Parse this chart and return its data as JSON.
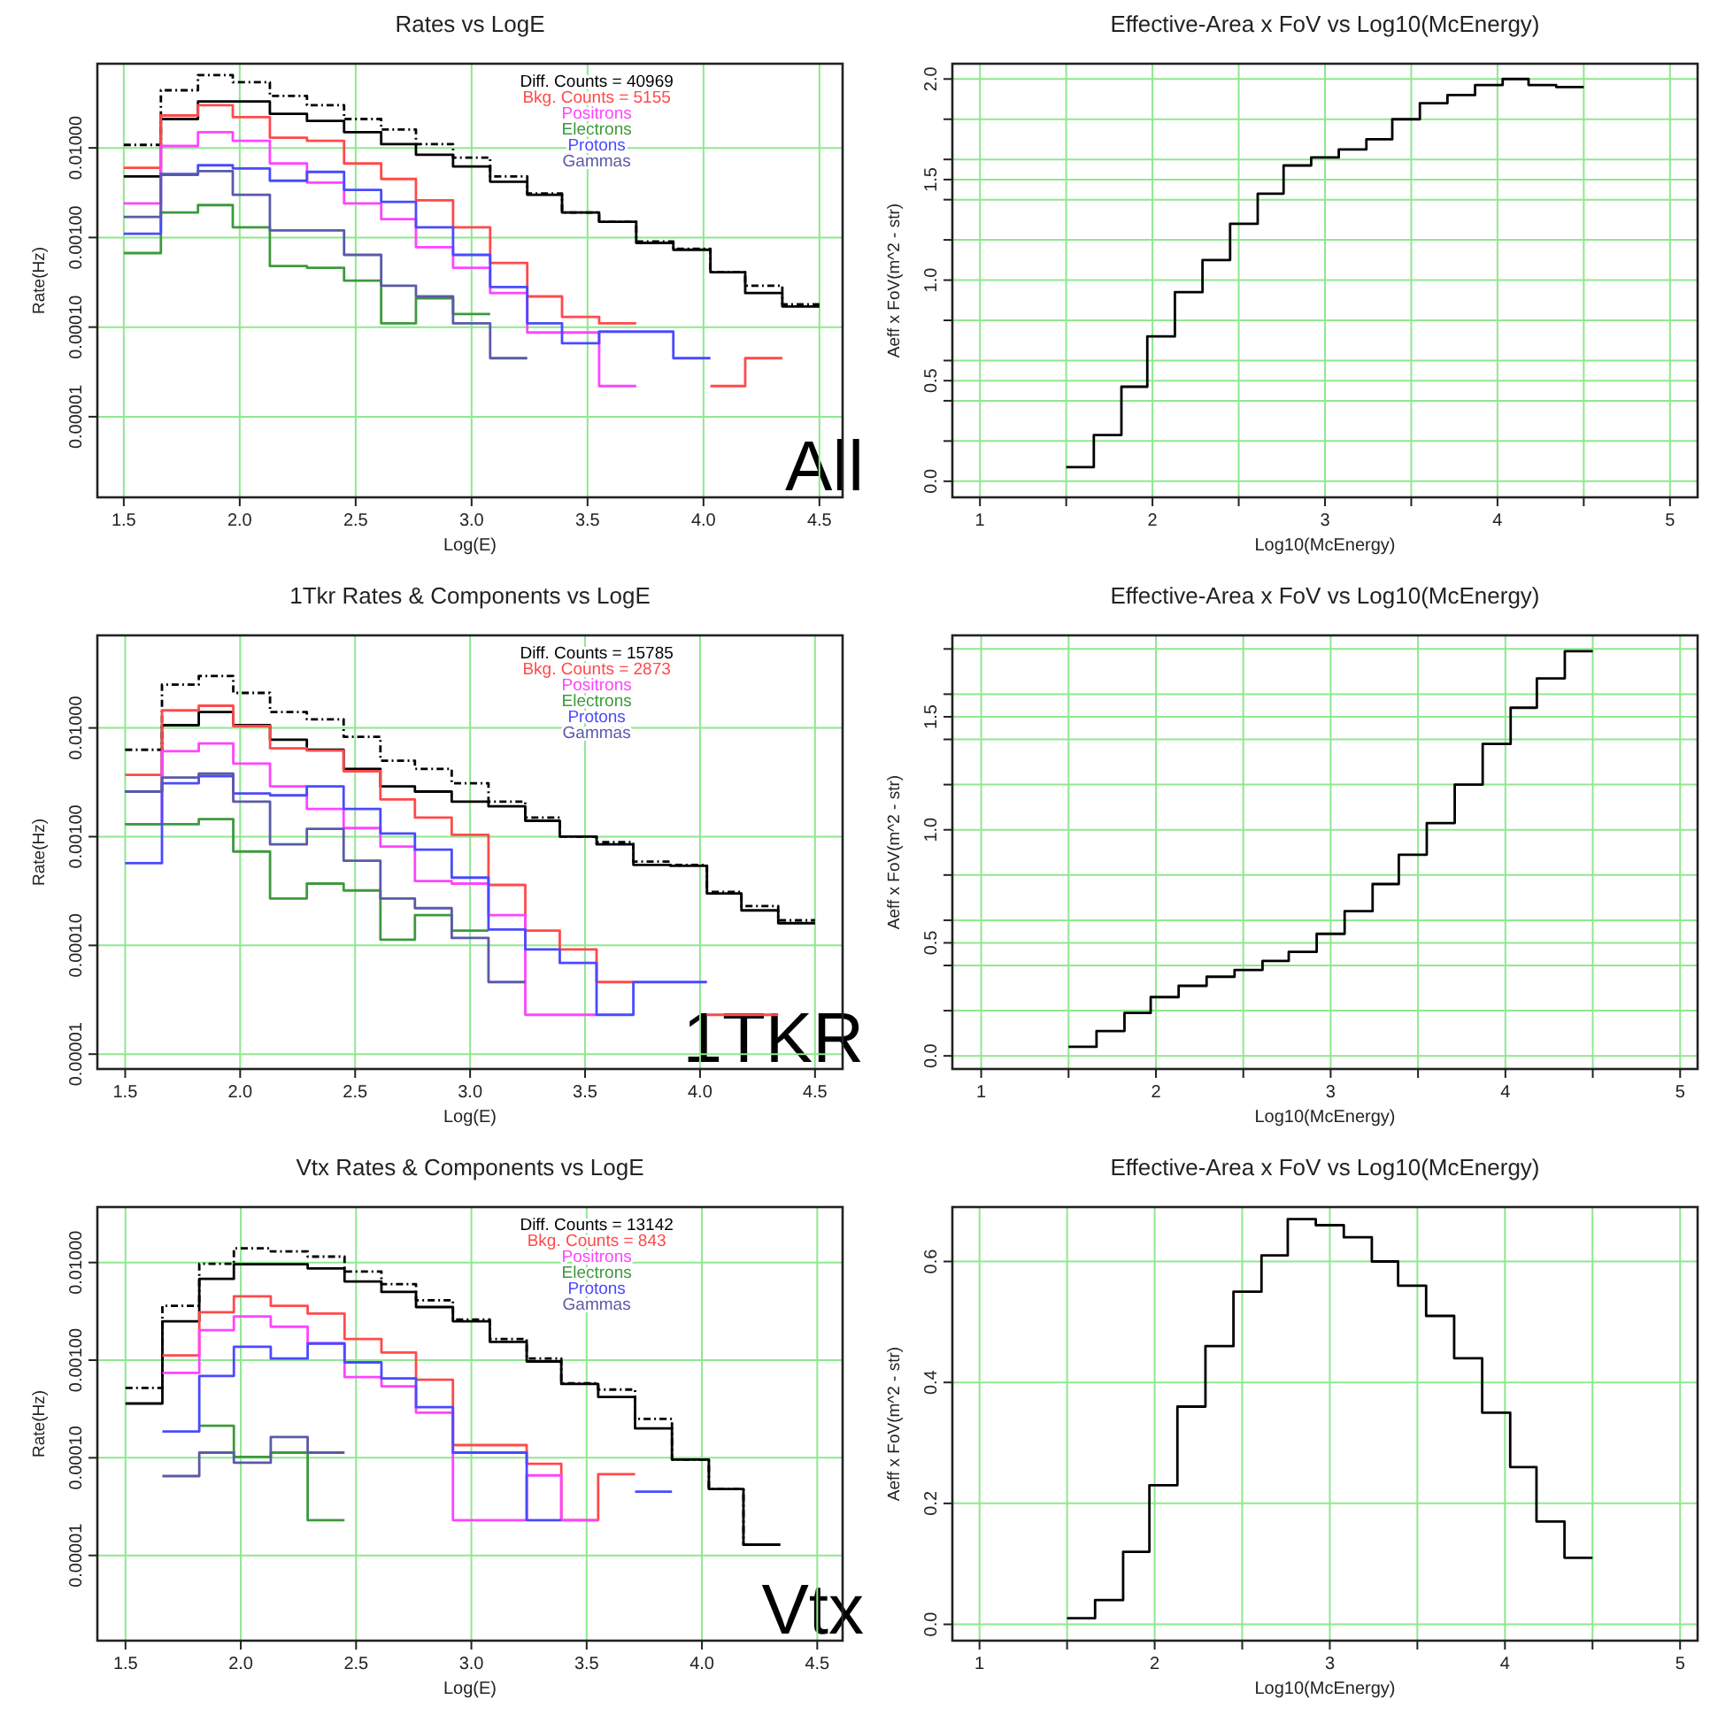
{
  "chart_data": [
    {
      "type": "step",
      "title": "Rates vs LogE",
      "xlabel": "Log(E)",
      "ylabel": "Rate(Hz)",
      "log": "y",
      "grid": true,
      "legend": "top right",
      "xlim": [
        1.386,
        4.6
      ],
      "ylim": [
        1.26e-06,
        0.087
      ],
      "xticks": [
        1.5,
        {
          "value": 2,
          "label": "2.0"
        },
        2.5,
        {
          "value": 3,
          "label": "3.0"
        },
        3.5,
        {
          "value": 4,
          "label": "4.0"
        },
        4.5
      ],
      "yticks": [
        {
          "value": 1e-05,
          "label": "0.00001"
        },
        {
          "value": 0.0001,
          "label": "0.00010"
        },
        {
          "value": 0.001,
          "label": "0.00100"
        },
        {
          "value": 0.01,
          "label": "0.01000"
        }
      ],
      "x": [
        1.5,
        1.66,
        1.82,
        1.97,
        2.13,
        2.29,
        2.45,
        2.61,
        2.76,
        2.92,
        3.08,
        3.24,
        3.39,
        3.55,
        3.71,
        3.87,
        4.03,
        4.18,
        4.34,
        4.5
      ],
      "annotations": [
        "All"
      ],
      "series": [
        {
          "color": "#000000",
          "line_style": "dashed",
          "values": [
            0.0108,
            0.044,
            0.065,
            0.054,
            0.038,
            0.03,
            0.021,
            0.016,
            0.011,
            0.0078,
            0.0048,
            0.0031,
            0.0019,
            0.0015,
            0.0009,
            0.00075,
            0.00041,
            0.00029,
            0.00018,
            0.00018
          ]
        },
        {
          "name": "Diff. Counts = 40969",
          "color": "#000000",
          "values": [
            0.0048,
            0.021,
            0.033,
            0.033,
            0.024,
            0.02,
            0.015,
            0.011,
            0.0084,
            0.0062,
            0.0042,
            0.003,
            0.0019,
            0.0015,
            0.00087,
            0.00073,
            0.00041,
            0.00024,
            0.00017,
            0.00017
          ]
        },
        {
          "name": "Bkg. Counts = 5155",
          "color": "#ff4a4a",
          "values": [
            0.006,
            0.023,
            0.03,
            0.022,
            0.013,
            0.012,
            0.0067,
            0.0045,
            0.0026,
            0.0013,
            0.00052,
            0.00022,
            0.00013,
            0.00011,
            0.00011,
            null,
            2.2e-05,
            4.5e-05,
            4.5e-05,
            null
          ]
        },
        {
          "name": "Positrons",
          "color": "#ff44ff",
          "values": [
            0.0024,
            0.0105,
            0.015,
            0.012,
            0.0067,
            0.0041,
            0.0024,
            0.0016,
            0.00078,
            0.00046,
            0.00024,
            8.7e-05,
            8.7e-05,
            2.2e-05,
            2.2e-05,
            null,
            null,
            null,
            null,
            null
          ]
        },
        {
          "name": "Electrons",
          "color": "#3d9a3d",
          "values": [
            0.00067,
            0.0019,
            0.0023,
            0.0013,
            0.00048,
            0.00046,
            0.00033,
            0.00011,
            0.00021,
            0.00014,
            0.00014,
            null,
            null,
            null,
            null,
            null,
            null,
            null,
            null,
            null
          ]
        },
        {
          "name": "Protons",
          "color": "#4a4aff",
          "values": [
            0.0011,
            0.0051,
            0.0064,
            0.0059,
            0.0043,
            0.0054,
            0.0034,
            0.0025,
            0.0013,
            0.00064,
            0.00028,
            0.00011,
            6.6e-05,
            8.9e-05,
            8.9e-05,
            4.5e-05,
            4.5e-05,
            null,
            null,
            null
          ]
        },
        {
          "name": "Gammas",
          "color": "#5a5aa8",
          "values": [
            0.0017,
            0.005,
            0.0055,
            0.003,
            0.0012,
            0.0012,
            0.00064,
            0.00029,
            0.00022,
            0.00011,
            4.5e-05,
            4.5e-05,
            null,
            null,
            null,
            null,
            null,
            null,
            null,
            null
          ]
        }
      ]
    },
    {
      "type": "step",
      "title": "Effective-Area x FoV vs Log10(McEnergy)",
      "xlabel": "Log10(McEnergy)",
      "ylabel": "Aeff x FoV(m^2 - str)",
      "grid": true,
      "xlim": [
        0.84,
        5.16
      ],
      "ylim": [
        -0.08,
        2.076
      ],
      "xticks": [
        1,
        {
          "value": 1.5,
          "label": null
        },
        2,
        {
          "value": 2.5,
          "label": null
        },
        3,
        {
          "value": 3.5,
          "label": null
        },
        4,
        {
          "value": 4.5,
          "label": null
        },
        5
      ],
      "yticks": [
        {
          "value": 0,
          "label": "0.0"
        },
        {
          "value": 0.2,
          "label": null
        },
        {
          "value": 0.4,
          "label": null
        },
        {
          "value": 0.5,
          "label": "0.5"
        },
        {
          "value": 0.6,
          "label": null
        },
        {
          "value": 0.8,
          "label": null
        },
        {
          "value": 1,
          "label": "1.0"
        },
        {
          "value": 1.2,
          "label": null
        },
        {
          "value": 1.4,
          "label": null
        },
        {
          "value": 1.5,
          "label": "1.5"
        },
        {
          "value": 1.6,
          "label": null
        },
        {
          "value": 1.8,
          "label": null
        },
        {
          "value": 2,
          "label": "2.0"
        }
      ],
      "x": [
        1.5,
        1.66,
        1.82,
        1.97,
        2.13,
        2.29,
        2.45,
        2.61,
        2.76,
        2.92,
        3.08,
        3.24,
        3.39,
        3.55,
        3.71,
        3.87,
        4.03,
        4.18,
        4.34,
        4.5
      ],
      "series": [
        {
          "color": "#000000",
          "values": [
            0.07,
            0.23,
            0.47,
            0.72,
            0.94,
            1.1,
            1.28,
            1.43,
            1.57,
            1.61,
            1.65,
            1.7,
            1.8,
            1.88,
            1.92,
            1.97,
            2.0,
            1.97,
            1.96,
            1.96
          ]
        }
      ]
    },
    {
      "type": "step",
      "title": "1Tkr Rates & Components vs LogE",
      "xlabel": "Log(E)",
      "ylabel": "Rate(Hz)",
      "log": "y",
      "grid": true,
      "legend": "top right",
      "xlim": [
        1.379,
        4.62
      ],
      "ylim": [
        7.3e-06,
        0.071
      ],
      "xticks": [
        1.5,
        {
          "value": 2,
          "label": "2.0"
        },
        2.5,
        {
          "value": 3,
          "label": "3.0"
        },
        3.5,
        {
          "value": 4,
          "label": "4.0"
        },
        4.5
      ],
      "yticks": [
        {
          "value": 1e-05,
          "label": "0.00001"
        },
        {
          "value": 0.0001,
          "label": "0.00010"
        },
        {
          "value": 0.001,
          "label": "0.00100"
        },
        {
          "value": 0.01,
          "label": "0.01000"
        }
      ],
      "x": [
        1.5,
        1.66,
        1.82,
        1.97,
        2.13,
        2.29,
        2.45,
        2.61,
        2.76,
        2.92,
        3.08,
        3.24,
        3.39,
        3.55,
        3.71,
        3.87,
        4.03,
        4.18,
        4.34,
        4.5
      ],
      "annotations": [
        "1TKR"
      ],
      "series": [
        {
          "color": "#000000",
          "line_style": "dashed",
          "values": [
            0.0063,
            0.025,
            0.03,
            0.021,
            0.014,
            0.012,
            0.0083,
            0.005,
            0.0042,
            0.0031,
            0.0021,
            0.0015,
            0.001,
            0.00089,
            0.00059,
            0.00055,
            0.00031,
            0.00023,
            0.00017,
            0.00017
          ]
        },
        {
          "name": "Diff. Counts = 15785",
          "color": "#000000",
          "values": [
            0.0026,
            0.0106,
            0.014,
            0.0106,
            0.0078,
            0.0063,
            0.0042,
            0.0029,
            0.0026,
            0.0021,
            0.0019,
            0.0014,
            0.001,
            0.00085,
            0.00055,
            0.00054,
            0.0003,
            0.00021,
            0.00016,
            0.00016
          ]
        },
        {
          "name": "Bkg. Counts = 2873",
          "color": "#ff4a4a",
          "values": [
            0.0037,
            0.0145,
            0.016,
            0.0104,
            0.0065,
            0.0062,
            0.004,
            0.0022,
            0.0015,
            0.00104,
            0.00036,
            0.000137,
            9.2e-05,
            4.6e-05,
            4.6e-05,
            null,
            2.3e-05,
            2.3e-05,
            2.3e-05,
            null
          ]
        },
        {
          "name": "Positrons",
          "color": "#ff44ff",
          "values": [
            0.0013,
            0.0061,
            0.0072,
            0.0047,
            0.0029,
            0.0018,
            0.0012,
            0.00081,
            0.00039,
            0.00037,
            0.00019,
            2.3e-05,
            2.3e-05,
            2.3e-05,
            null,
            null,
            null,
            null,
            null,
            null
          ]
        },
        {
          "name": "Electrons",
          "color": "#3d9a3d",
          "values": [
            0.0013,
            0.0013,
            0.00145,
            0.00073,
            0.00027,
            0.00037,
            0.00032,
            0.000113,
            0.00019,
            0.000137,
            0.000137,
            null,
            null,
            null,
            null,
            null,
            null,
            null,
            null,
            null
          ]
        },
        {
          "name": "Protons",
          "color": "#4a4aff",
          "values": [
            0.00057,
            0.0031,
            0.0036,
            0.0025,
            0.0024,
            0.0029,
            0.0018,
            0.00107,
            0.00076,
            0.00042,
            0.00014,
            9.2e-05,
            6.9e-05,
            2.3e-05,
            4.6e-05,
            4.6e-05,
            4.6e-05,
            null,
            null,
            null
          ]
        },
        {
          "name": "Gammas",
          "color": "#5a5aa8",
          "values": [
            0.0026,
            0.0035,
            0.0038,
            0.0021,
            0.00085,
            0.00118,
            0.0006,
            0.00027,
            0.00022,
            0.000117,
            4.6e-05,
            4.6e-05,
            null,
            null,
            null,
            null,
            null,
            null,
            null,
            null
          ]
        }
      ]
    },
    {
      "type": "step",
      "title": "Effective-Area x FoV vs Log10(McEnergy)",
      "xlabel": "Log10(McEnergy)",
      "ylabel": "Aeff x FoV(m^2 - str)",
      "grid": true,
      "xlim": [
        0.835,
        5.1
      ],
      "ylim": [
        -0.058,
        1.86
      ],
      "xticks": [
        1,
        {
          "value": 1.5,
          "label": null
        },
        2,
        {
          "value": 2.5,
          "label": null
        },
        3,
        {
          "value": 3.5,
          "label": null
        },
        4,
        {
          "value": 4.5,
          "label": null
        },
        5
      ],
      "yticks": [
        {
          "value": 0,
          "label": "0.0"
        },
        {
          "value": 0.2,
          "label": null
        },
        {
          "value": 0.4,
          "label": null
        },
        {
          "value": 0.5,
          "label": "0.5"
        },
        {
          "value": 0.6,
          "label": null
        },
        {
          "value": 0.8,
          "label": null
        },
        {
          "value": 1,
          "label": "1.0"
        },
        {
          "value": 1.2,
          "label": null
        },
        {
          "value": 1.4,
          "label": null
        },
        {
          "value": 1.5,
          "label": "1.5"
        },
        {
          "value": 1.6,
          "label": null
        },
        {
          "value": 1.8,
          "label": null
        }
      ],
      "x": [
        1.5,
        1.66,
        1.82,
        1.97,
        2.13,
        2.29,
        2.45,
        2.61,
        2.76,
        2.92,
        3.08,
        3.24,
        3.39,
        3.55,
        3.71,
        3.87,
        4.03,
        4.18,
        4.34,
        4.5
      ],
      "series": [
        {
          "color": "#000000",
          "values": [
            0.04,
            0.11,
            0.19,
            0.26,
            0.31,
            0.35,
            0.38,
            0.42,
            0.46,
            0.54,
            0.64,
            0.76,
            0.89,
            1.03,
            1.2,
            1.38,
            1.54,
            1.67,
            1.79,
            1.79
          ]
        }
      ]
    },
    {
      "type": "step",
      "title": "Vtx Rates & Components vs LogE",
      "xlabel": "Log(E)",
      "ylabel": "Rate(Hz)",
      "log": "y",
      "grid": true,
      "legend": "top right",
      "xlim": [
        1.378,
        4.61
      ],
      "ylim": [
        1.34e-06,
        0.037
      ],
      "xticks": [
        1.5,
        {
          "value": 2,
          "label": "2.0"
        },
        2.5,
        {
          "value": 3,
          "label": "3.0"
        },
        3.5,
        {
          "value": 4,
          "label": "4.0"
        },
        4.5
      ],
      "yticks": [
        {
          "value": 1e-05,
          "label": "0.00001"
        },
        {
          "value": 0.0001,
          "label": "0.00010"
        },
        {
          "value": 0.001,
          "label": "0.00100"
        },
        {
          "value": 0.01,
          "label": "0.01000"
        }
      ],
      "x": [
        1.5,
        1.66,
        1.82,
        1.97,
        2.13,
        2.29,
        2.45,
        2.61,
        2.76,
        2.92,
        3.08,
        3.24,
        3.39,
        3.55,
        3.71,
        3.87,
        4.03,
        4.18,
        4.34
      ],
      "annotations": [
        "Vtx"
      ],
      "series": [
        {
          "color": "#000000",
          "line_style": "dashed",
          "values": [
            0.00052,
            0.0036,
            0.0097,
            0.014,
            0.013,
            0.0115,
            0.0081,
            0.006,
            0.0041,
            0.0026,
            0.00165,
            0.00104,
            0.00058,
            0.0005,
            0.00025,
            9.6e-05,
            4.8e-05,
            1.29e-05,
            1.29e-05
          ]
        },
        {
          "name": "Diff. Counts = 13142",
          "color": "#000000",
          "values": [
            0.00036,
            0.0025,
            0.0068,
            0.0096,
            0.0096,
            0.0087,
            0.0064,
            0.005,
            0.0035,
            0.0025,
            0.00154,
            0.00097,
            0.00057,
            0.00042,
            0.0002,
            9.6e-05,
            4.8e-05,
            1.29e-05,
            1.29e-05
          ]
        },
        {
          "name": "Bkg. Counts = 843",
          "color": "#ff4a4a",
          "values": [
            null,
            0.00112,
            0.0031,
            0.0045,
            0.0036,
            0.003,
            0.00165,
            0.0012,
            0.00063,
            0.000135,
            0.000135,
            8.7e-05,
            2.3e-05,
            6.8e-05,
            6.8e-05,
            null,
            null,
            null,
            null
          ]
        },
        {
          "name": "Positrons",
          "color": "#ff44ff",
          "values": [
            null,
            0.00074,
            0.00203,
            0.0028,
            0.0022,
            0.00149,
            0.00067,
            0.00054,
            0.00029,
            2.3e-05,
            2.3e-05,
            6.6e-05,
            2.3e-05,
            2.3e-05,
            null,
            null,
            null,
            null,
            null
          ]
        },
        {
          "name": "Electrons",
          "color": "#3d9a3d",
          "values": [
            null,
            null,
            0.000213,
            0.000102,
            0.000113,
            2.3e-05,
            2.3e-05,
            null,
            null,
            null,
            null,
            null,
            null,
            null,
            null,
            null,
            null,
            null,
            null
          ]
        },
        {
          "name": "Protons",
          "color": "#4a4aff",
          "values": [
            null,
            0.000186,
            0.00069,
            0.00137,
            0.00104,
            0.00148,
            0.00095,
            0.00065,
            0.00033,
            0.000113,
            0.000113,
            2.3e-05,
            2.3e-05,
            null,
            4.5e-05,
            4.5e-05,
            null,
            null,
            null
          ]
        },
        {
          "name": "Gammas",
          "color": "#5a5aa8",
          "values": [
            null,
            6.5e-05,
            0.000113,
            8.9e-05,
            0.000163,
            0.000113,
            0.000113,
            null,
            null,
            null,
            null,
            null,
            null,
            null,
            null,
            null,
            null,
            null,
            null
          ]
        }
      ]
    },
    {
      "type": "step",
      "title": "Effective-Area x FoV vs Log10(McEnergy)",
      "xlabel": "Log10(McEnergy)",
      "ylabel": "Aeff x FoV(m^2 - str)",
      "grid": true,
      "xlim": [
        0.845,
        5.1
      ],
      "ylim": [
        -0.027,
        0.69
      ],
      "xticks": [
        1,
        {
          "value": 1.5,
          "label": null
        },
        2,
        {
          "value": 2.5,
          "label": null
        },
        3,
        {
          "value": 3.5,
          "label": null
        },
        4,
        {
          "value": 4.5,
          "label": null
        },
        5
      ],
      "yticks": [
        {
          "value": 0,
          "label": "0.0"
        },
        {
          "value": 0.2,
          "label": "0.2"
        },
        {
          "value": 0.4,
          "label": "0.4"
        },
        {
          "value": 0.6,
          "label": "0.6"
        }
      ],
      "x": [
        1.5,
        1.66,
        1.82,
        1.97,
        2.13,
        2.29,
        2.45,
        2.61,
        2.76,
        2.92,
        3.08,
        3.24,
        3.39,
        3.55,
        3.71,
        3.87,
        4.03,
        4.18,
        4.34,
        4.5
      ],
      "series": [
        {
          "color": "#000000",
          "values": [
            0.01,
            0.04,
            0.12,
            0.23,
            0.36,
            0.46,
            0.55,
            0.61,
            0.67,
            0.66,
            0.64,
            0.6,
            0.56,
            0.51,
            0.44,
            0.35,
            0.26,
            0.17,
            0.11,
            0.11
          ]
        }
      ]
    }
  ]
}
